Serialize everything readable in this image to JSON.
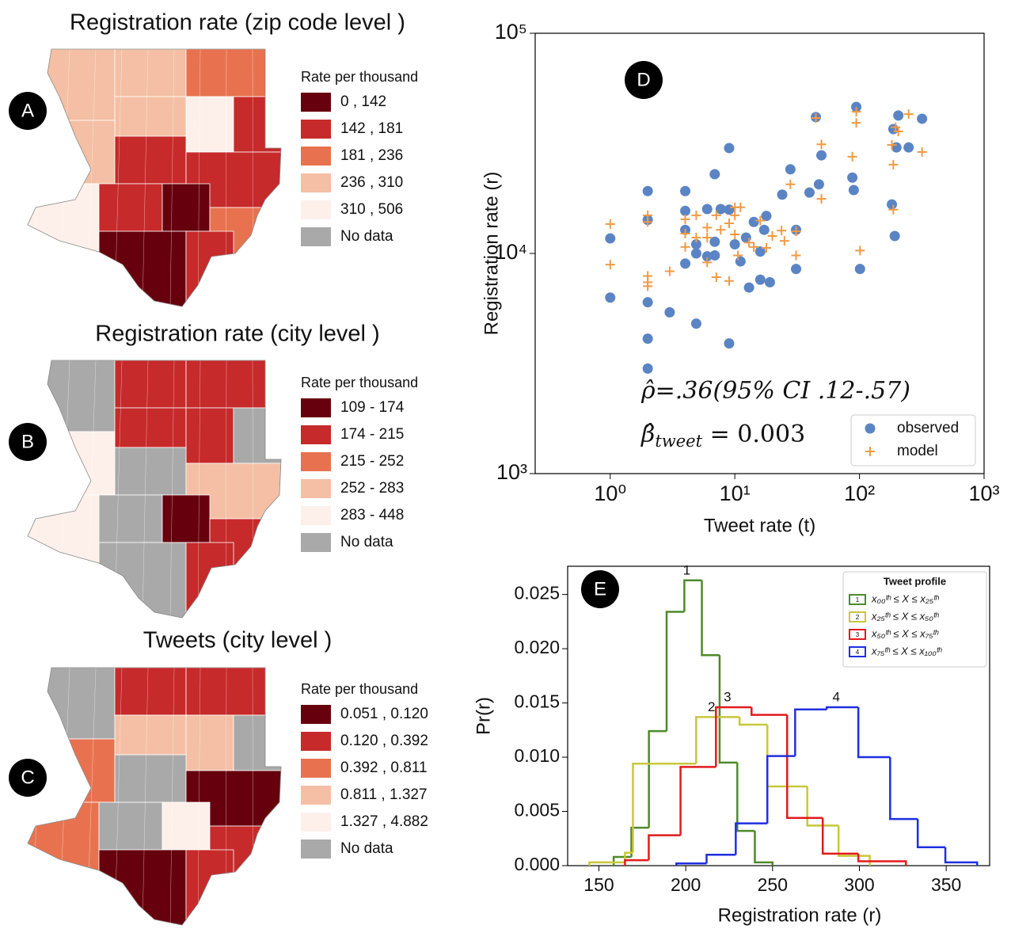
{
  "chart_data": [
    {
      "type": "choropleth",
      "panel": "A",
      "title": "Registration rate (zip code level )",
      "legend_title": "Rate per thousand",
      "legend": [
        {
          "label": "0 , 142",
          "color": "#67000d"
        },
        {
          "label": "142 , 181",
          "color": "#c62a2a"
        },
        {
          "label": "181 , 236",
          "color": "#e8724f"
        },
        {
          "label": "236 , 310",
          "color": "#f4bfa4"
        },
        {
          "label": "310 , 506",
          "color": "#fdf0ea"
        },
        {
          "label": "No data",
          "color": "#a9a9a9"
        }
      ]
    },
    {
      "type": "choropleth",
      "panel": "B",
      "title": "Registration rate (city level )",
      "legend_title": "Rate per thousand",
      "legend": [
        {
          "label": "109 - 174",
          "color": "#67000d"
        },
        {
          "label": "174 - 215",
          "color": "#c62a2a"
        },
        {
          "label": "215 - 252",
          "color": "#e8724f"
        },
        {
          "label": "252 - 283",
          "color": "#f4bfa4"
        },
        {
          "label": "283 - 448",
          "color": "#fdf0ea"
        },
        {
          "label": "No data",
          "color": "#a9a9a9"
        }
      ]
    },
    {
      "type": "choropleth",
      "panel": "C",
      "title": "Tweets (city level )",
      "legend_title": "Rate per thousand",
      "legend": [
        {
          "label": "0.051 , 0.120",
          "color": "#67000d"
        },
        {
          "label": "0.120 , 0.392",
          "color": "#c62a2a"
        },
        {
          "label": "0.392 , 0.811",
          "color": "#e8724f"
        },
        {
          "label": "0.811 , 1.327",
          "color": "#f4bfa4"
        },
        {
          "label": "1.327 , 4.882",
          "color": "#fdf0ea"
        },
        {
          "label": "No data",
          "color": "#a9a9a9"
        }
      ]
    },
    {
      "type": "scatter",
      "panel": "D",
      "xlabel": "Tweet rate (t)",
      "ylabel": "Registration rate (r)",
      "xscale": "log",
      "yscale": "log",
      "xlim": [
        0.25,
        1000
      ],
      "ylim": [
        1000,
        100000
      ],
      "xticks": [
        {
          "value": 1,
          "label": "10⁰"
        },
        {
          "value": 10,
          "label": "10¹"
        },
        {
          "value": 100,
          "label": "10²"
        },
        {
          "value": 1000,
          "label": "10³"
        }
      ],
      "yticks": [
        {
          "value": 1000,
          "label": "10³"
        },
        {
          "value": 10000,
          "label": "10⁴"
        },
        {
          "value": 100000,
          "label": "10⁵"
        }
      ],
      "legend": "lower right",
      "annotations": [
        {
          "text": "ρ̂=.36(95% CI .12-.57)"
        },
        {
          "text": "β̂",
          "subscript": "tweet",
          "suffix": " = 0.003"
        }
      ],
      "series": [
        {
          "name": "observed",
          "color": "#5b84c4",
          "marker": "circle",
          "x": [
            1,
            1,
            2,
            2,
            2,
            2,
            2,
            3,
            4,
            4,
            4,
            4,
            4.9,
            4.9,
            4.9,
            6,
            6,
            6.9,
            6.9,
            6.9,
            7.7,
            9,
            9,
            9,
            10,
            11.1,
            12.3,
            13,
            14.2,
            16,
            16,
            17.2,
            17.9,
            19.1,
            24,
            27.9,
            31,
            31,
            39.7,
            44.7,
            47.3,
            49.5,
            87.7,
            90,
            94.3,
            101,
            182,
            187,
            192,
            198,
            205,
            248,
            318
          ],
          "y": [
            11700,
            6300,
            19200,
            14200,
            6000,
            4100,
            3000,
            5400,
            19200,
            15600,
            12800,
            9000,
            11000,
            10000,
            4800,
            15900,
            9700,
            22900,
            11300,
            9800,
            15900,
            30100,
            3900,
            15800,
            11000,
            9200,
            11800,
            7000,
            13900,
            7600,
            10200,
            12800,
            14800,
            7400,
            18500,
            24100,
            12800,
            8500,
            18900,
            41600,
            20600,
            27900,
            22100,
            19400,
            46300,
            8500,
            16700,
            36700,
            12000,
            30300,
            42300,
            30300,
            40900
          ]
        },
        {
          "name": "model",
          "color": "#f09a44",
          "marker": "plus",
          "x": [
            1,
            1,
            2,
            2,
            2,
            2,
            2,
            3,
            4,
            4,
            4,
            4.9,
            4.9,
            6,
            6,
            6,
            7.1,
            7.1,
            7.7,
            9,
            9,
            10,
            10,
            10,
            10.6,
            11.1,
            13,
            14.2,
            16,
            17.9,
            20,
            23.7,
            25,
            27.9,
            31,
            31,
            44.7,
            49.5,
            49.5,
            87.7,
            94.3,
            94.3,
            101,
            182,
            187,
            187,
            195,
            205,
            248,
            318
          ],
          "y": [
            13600,
            8900,
            14900,
            13900,
            7900,
            7400,
            7100,
            8300,
            14300,
            12300,
            10700,
            14900,
            11800,
            13100,
            11800,
            9100,
            14900,
            7800,
            12800,
            13700,
            7500,
            16200,
            14900,
            12200,
            9800,
            16200,
            11200,
            10700,
            14100,
            10600,
            12000,
            12700,
            11400,
            20600,
            12600,
            9800,
            41200,
            31300,
            17700,
            27500,
            44000,
            39200,
            10300,
            31100,
            25300,
            15800,
            37400,
            35800,
            42900,
            28900
          ]
        }
      ]
    },
    {
      "type": "histogram",
      "panel": "E",
      "xlabel": "Registration rate (r)",
      "ylabel": "Pr(r)",
      "xlim": [
        132,
        375
      ],
      "ylim": [
        0,
        0.0276
      ],
      "xticks": [
        150,
        200,
        250,
        300,
        350
      ],
      "yticks": [
        {
          "value": 0,
          "label": "0.000"
        },
        {
          "value": 0.005,
          "label": "0.005"
        },
        {
          "value": 0.01,
          "label": "0.010"
        },
        {
          "value": 0.015,
          "label": "0.015"
        },
        {
          "value": 0.02,
          "label": "0.020"
        },
        {
          "value": 0.025,
          "label": "0.025"
        }
      ],
      "legend_title": "Tweet profile",
      "legend": "upper right",
      "series": [
        {
          "name": "x₀₀ᵗʰ ≤ X ≤ x₂₅ᵗʰ",
          "label": "1",
          "color": "#4e8a2a",
          "bins": [
            158.5,
            168.7,
            178.8,
            189,
            199.2,
            209.3,
            219.5,
            229.7,
            239.8,
            250
          ],
          "counts": [
            0.0008,
            0.0035,
            0.0124,
            0.0234,
            0.0263,
            0.0194,
            0.0095,
            0.0032,
            0.0003
          ]
        },
        {
          "name": "x₂₅ᵗʰ ≤ X ≤ x₅₀ᵗʰ",
          "label": "2",
          "color": "#c8c83a",
          "bins": [
            144.5,
            165,
            169.6,
            206,
            231,
            247,
            270,
            288,
            306
          ],
          "counts": [
            0.0003,
            0.0012,
            0.0094,
            0.0137,
            0.013,
            0.0073,
            0.0037,
            0.0009
          ]
        },
        {
          "name": "x₅₀ᵗʰ ≤ X ≤ x₇₅ᵗʰ",
          "label": "3",
          "color": "#e31a1c",
          "bins": [
            165,
            178.7,
            197,
            217.4,
            237.9,
            258.4,
            278.9,
            299.4,
            326.8
          ],
          "counts": [
            0.0005,
            0.0028,
            0.0091,
            0.0146,
            0.0139,
            0.0044,
            0.0011,
            0.0004
          ]
        },
        {
          "name": "x₇₅ᵗʰ ≤ X ≤ x₁₀₀ᵗʰ",
          "label": "4",
          "color": "#1f2fe0",
          "bins": [
            194.6,
            212,
            228.8,
            247,
            263,
            281.2,
            299.4,
            317.7,
            333.6,
            349.5,
            367.8
          ],
          "counts": [
            0.0002,
            0.001,
            0.0039,
            0.0101,
            0.0144,
            0.0146,
            0.01,
            0.0043,
            0.0017,
            0.0003
          ]
        }
      ]
    }
  ]
}
